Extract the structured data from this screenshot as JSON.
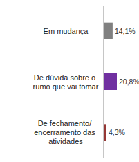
{
  "chart_data": {
    "type": "bar",
    "orientation": "horizontal",
    "categories": [
      "Em mudança",
      "De dúvida sobre o rumo que vai tomar",
      "De fechamento/ encerramento das atividades"
    ],
    "values": [
      14.1,
      20.8,
      4.3
    ],
    "value_labels": [
      "14,1%",
      "20,8%",
      "4,3%"
    ],
    "colors": [
      "#808080",
      "#7030a0",
      "#953735"
    ],
    "xlim": [
      0,
      30
    ],
    "data_labels": true,
    "tick_labels": "y",
    "grid": false
  }
}
